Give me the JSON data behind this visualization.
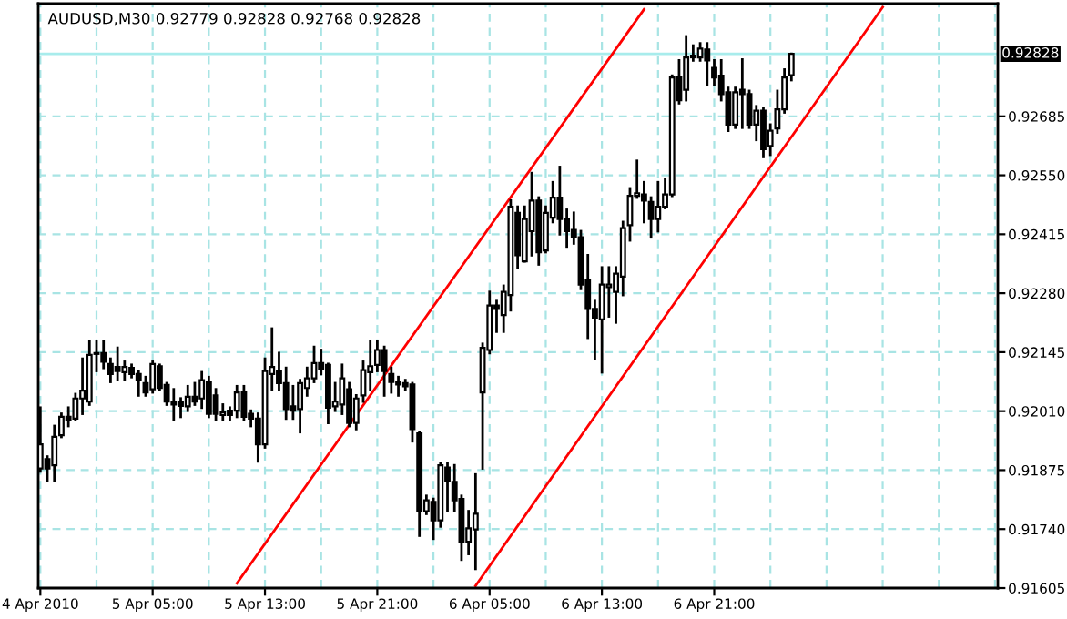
{
  "chart_data": {
    "type": "candlestick",
    "title": "AUDUSD,M30 0.92779 0.92828 0.92768 0.92828",
    "color": "#000000",
    "grid": true,
    "legend": false,
    "categories": [
      "4 Apr 2010",
      null,
      null,
      null,
      null,
      null,
      null,
      null,
      null,
      null,
      null,
      null,
      null,
      null,
      null,
      null,
      "5 Apr 05:00",
      null,
      null,
      null,
      null,
      null,
      null,
      null,
      null,
      null,
      null,
      null,
      null,
      null,
      null,
      null,
      "5 Apr 13:00",
      null,
      null,
      null,
      null,
      null,
      null,
      null,
      null,
      null,
      null,
      null,
      null,
      null,
      null,
      null,
      "5 Apr 21:00",
      null,
      null,
      null,
      null,
      null,
      null,
      null,
      null,
      null,
      null,
      null,
      null,
      null,
      null,
      null,
      "6 Apr 05:00",
      null,
      null,
      null,
      null,
      null,
      null,
      null,
      null,
      null,
      null,
      null,
      null,
      null,
      null,
      null,
      "6 Apr 13:00",
      null,
      null,
      null,
      null,
      null,
      null,
      null,
      null,
      null,
      null,
      null,
      null,
      null,
      null,
      null,
      "6 Apr 21:00",
      null,
      null,
      null,
      null,
      null,
      null,
      null,
      null,
      null,
      null,
      null,
      null,
      null,
      null,
      null,
      null,
      null,
      null,
      null,
      null,
      null,
      null,
      null,
      null,
      null,
      null,
      null,
      null,
      null,
      null,
      null,
      null,
      null,
      null,
      null,
      null,
      null,
      null,
      null,
      null
    ],
    "ohlc": [
      [
        0.91879,
        0.92018,
        0.91872,
        0.91934
      ],
      [
        0.919,
        0.91906,
        0.91851,
        0.91879
      ],
      [
        0.91886,
        0.91976,
        0.91851,
        0.91951
      ],
      [
        0.91955,
        0.92004,
        0.91951,
        0.91997
      ],
      [
        0.91997,
        0.92018,
        0.91976,
        0.9199
      ],
      [
        0.91993,
        0.92049,
        0.9199,
        0.92039
      ],
      [
        0.92039,
        0.9213,
        0.92004,
        0.92057
      ],
      [
        0.92032,
        0.92171,
        0.92025,
        0.92139
      ],
      [
        0.92143,
        0.92171,
        0.92102,
        0.92141
      ],
      [
        0.92143,
        0.92171,
        0.92109,
        0.92123
      ],
      [
        0.92118,
        0.9213,
        0.92077,
        0.92095
      ],
      [
        0.92111,
        0.92155,
        0.92081,
        0.92102
      ],
      [
        0.92099,
        0.92123,
        0.92081,
        0.92111
      ],
      [
        0.92109,
        0.92116,
        0.92088,
        0.92095
      ],
      [
        0.92095,
        0.92102,
        0.92046,
        0.92081
      ],
      [
        0.92074,
        0.92088,
        0.92046,
        0.92053
      ],
      [
        0.9206,
        0.92123,
        0.92053,
        0.92118
      ],
      [
        0.92113,
        0.92116,
        0.9206,
        0.92063
      ],
      [
        0.9207,
        0.92074,
        0.92025,
        0.92032
      ],
      [
        0.92032,
        0.9206,
        0.9199,
        0.92025
      ],
      [
        0.92032,
        0.92039,
        0.91997,
        0.92022
      ],
      [
        0.92021,
        0.92067,
        0.92011,
        0.92043
      ],
      [
        0.92043,
        0.92074,
        0.92025,
        0.92032
      ],
      [
        0.92039,
        0.92099,
        0.92018,
        0.92081
      ],
      [
        0.92077,
        0.92088,
        0.91997,
        0.92004
      ],
      [
        0.92046,
        0.9206,
        0.9199,
        0.92004
      ],
      [
        0.92001,
        0.92025,
        0.9199,
        0.92007
      ],
      [
        0.92011,
        0.92018,
        0.9199,
        0.92001
      ],
      [
        0.92011,
        0.92067,
        0.91997,
        0.92053
      ],
      [
        0.92053,
        0.92067,
        0.9199,
        0.91997
      ],
      [
        0.92004,
        0.92011,
        0.91976,
        0.91993
      ],
      [
        0.91993,
        0.92004,
        0.91895,
        0.91934
      ],
      [
        0.91934,
        0.9213,
        0.91927,
        0.92102
      ],
      [
        0.92095,
        0.92199,
        0.9206,
        0.92111
      ],
      [
        0.92102,
        0.92143,
        0.9206,
        0.92074
      ],
      [
        0.92074,
        0.92109,
        0.91993,
        0.92015
      ],
      [
        0.92021,
        0.92067,
        0.91993,
        0.92011
      ],
      [
        0.92015,
        0.92081,
        0.91962,
        0.92074
      ],
      [
        0.92063,
        0.92109,
        0.92046,
        0.92085
      ],
      [
        0.92085,
        0.92157,
        0.92077,
        0.9212
      ],
      [
        0.9212,
        0.9215,
        0.92095,
        0.92106
      ],
      [
        0.92116,
        0.92118,
        0.91983,
        0.92018
      ],
      [
        0.92021,
        0.92074,
        0.92011,
        0.92032
      ],
      [
        0.92025,
        0.92116,
        0.92004,
        0.92085
      ],
      [
        0.9206,
        0.92074,
        0.91976,
        0.91983
      ],
      [
        0.91983,
        0.92046,
        0.91969,
        0.92039
      ],
      [
        0.92046,
        0.92123,
        0.92032,
        0.92104
      ],
      [
        0.92099,
        0.92171,
        0.9206,
        0.92113
      ],
      [
        0.92116,
        0.92171,
        0.92102,
        0.9215
      ],
      [
        0.9215,
        0.92157,
        0.92046,
        0.92102
      ],
      [
        0.92095,
        0.92109,
        0.92053,
        0.92077
      ],
      [
        0.92077,
        0.92088,
        0.92046,
        0.92071
      ],
      [
        0.92074,
        0.92081,
        0.9206,
        0.92067
      ],
      [
        0.92071,
        0.92074,
        0.91941,
        0.91969
      ],
      [
        0.91959,
        0.91962,
        0.91725,
        0.91781
      ],
      [
        0.91781,
        0.91816,
        0.91775,
        0.91806
      ],
      [
        0.91802,
        0.91809,
        0.91718,
        0.9176
      ],
      [
        0.9176,
        0.9189,
        0.91746,
        0.91886
      ],
      [
        0.91881,
        0.9189,
        0.91781,
        0.91851
      ],
      [
        0.91848,
        0.91886,
        0.91781,
        0.91806
      ],
      [
        0.91809,
        0.91816,
        0.9167,
        0.91711
      ],
      [
        0.91711,
        0.91781,
        0.91683,
        0.91742
      ],
      [
        0.91739,
        0.91865,
        0.91649,
        0.91775
      ],
      [
        0.92053,
        0.92164,
        0.91879,
        0.92155
      ],
      [
        0.9215,
        0.92283,
        0.92143,
        0.92252
      ],
      [
        0.92252,
        0.92262,
        0.92192,
        0.92244
      ],
      [
        0.9223,
        0.92297,
        0.92192,
        0.92283
      ],
      [
        0.92276,
        0.92492,
        0.92241,
        0.92478
      ],
      [
        0.92464,
        0.92478,
        0.92339,
        0.92367
      ],
      [
        0.92353,
        0.92478,
        0.92353,
        0.9245
      ],
      [
        0.92422,
        0.92555,
        0.92367,
        0.92492
      ],
      [
        0.92492,
        0.92499,
        0.92346,
        0.92374
      ],
      [
        0.92378,
        0.92478,
        0.92374,
        0.92464
      ],
      [
        0.92453,
        0.92534,
        0.92443,
        0.92499
      ],
      [
        0.92499,
        0.92569,
        0.92415,
        0.9245
      ],
      [
        0.9245,
        0.92471,
        0.92387,
        0.92422
      ],
      [
        0.92425,
        0.92464,
        0.92394,
        0.92408
      ],
      [
        0.92408,
        0.92422,
        0.9229,
        0.923
      ],
      [
        0.92311,
        0.92367,
        0.92178,
        0.92244
      ],
      [
        0.92244,
        0.92262,
        0.9213,
        0.92224
      ],
      [
        0.9222,
        0.92339,
        0.92099,
        0.923
      ],
      [
        0.92294,
        0.92339,
        0.92227,
        0.923
      ],
      [
        0.92283,
        0.92339,
        0.92213,
        0.92325
      ],
      [
        0.92318,
        0.92443,
        0.92276,
        0.92429
      ],
      [
        0.92436,
        0.9252,
        0.92401,
        0.92503
      ],
      [
        0.92503,
        0.92583,
        0.92499,
        0.92509
      ],
      [
        0.92506,
        0.92534,
        0.92443,
        0.92492
      ],
      [
        0.92489,
        0.92499,
        0.92408,
        0.9245
      ],
      [
        0.9245,
        0.92534,
        0.92422,
        0.92478
      ],
      [
        0.92478,
        0.92541,
        0.92475,
        0.92506
      ],
      [
        0.92506,
        0.92778,
        0.92503,
        0.92774
      ],
      [
        0.92774,
        0.92813,
        0.92715,
        0.92722
      ],
      [
        0.92746,
        0.92868,
        0.92722,
        0.9282
      ],
      [
        0.9282,
        0.92847,
        0.92813,
        0.92824
      ],
      [
        0.9282,
        0.92852,
        0.92813,
        0.9284
      ],
      [
        0.92838,
        0.92852,
        0.92757,
        0.92813
      ],
      [
        0.92796,
        0.92813,
        0.92757,
        0.92774
      ],
      [
        0.92778,
        0.92813,
        0.92722,
        0.92736
      ],
      [
        0.9274,
        0.9275,
        0.92652,
        0.92666
      ],
      [
        0.92666,
        0.9275,
        0.92659,
        0.9274
      ],
      [
        0.92746,
        0.92815,
        0.92659,
        0.92736
      ],
      [
        0.92736,
        0.92743,
        0.92659,
        0.92666
      ],
      [
        0.92666,
        0.92708,
        0.92631,
        0.92698
      ],
      [
        0.92698,
        0.92704,
        0.92592,
        0.9261
      ],
      [
        0.92617,
        0.92666,
        0.92597,
        0.92652
      ],
      [
        0.92657,
        0.92743,
        0.92648,
        0.92701
      ],
      [
        0.92701,
        0.92792,
        0.92694,
        0.92774
      ],
      [
        0.92779,
        0.92828,
        0.92768,
        0.92828
      ],
      null,
      null,
      null,
      null,
      null,
      null,
      null,
      null,
      null,
      null,
      null,
      null,
      null,
      null,
      null,
      null,
      null,
      null,
      null,
      null,
      null,
      null,
      null,
      null,
      null,
      null,
      null,
      null,
      null
    ],
    "series": [
      {
        "type": "line",
        "color": "#ff0000",
        "values": [
          null,
          null,
          null,
          null,
          null,
          null,
          null,
          null,
          null,
          null,
          null,
          null,
          null,
          null,
          null,
          null,
          null,
          null,
          null,
          null,
          null,
          null,
          null,
          null,
          null,
          null,
          null,
          null,
          0.91616,
          null,
          null,
          null,
          null,
          null,
          null,
          null,
          null,
          null,
          null,
          null,
          null,
          null,
          null,
          null,
          null,
          null,
          null,
          null,
          null,
          null,
          null,
          null,
          null,
          null,
          null,
          null,
          null,
          null,
          null,
          null,
          null,
          null,
          null,
          null,
          null,
          null,
          null,
          null,
          null,
          null,
          null,
          null,
          null,
          null,
          null,
          null,
          null,
          null,
          null,
          null,
          null,
          null,
          null,
          null,
          null,
          null,
          0.9293,
          null,
          null,
          null,
          null,
          null,
          null,
          null,
          null,
          null,
          null,
          null,
          null,
          null,
          null,
          null,
          null,
          null,
          null,
          null,
          null,
          null,
          null,
          null,
          null,
          null,
          null,
          null,
          null,
          null,
          null,
          null,
          null,
          null,
          null,
          null,
          null,
          null,
          null,
          null,
          null,
          null,
          null,
          null,
          null,
          null,
          null,
          null,
          null,
          null,
          null
        ]
      },
      {
        "type": "line",
        "color": "#ff0000",
        "values": [
          null,
          null,
          null,
          null,
          null,
          null,
          null,
          null,
          null,
          null,
          null,
          null,
          null,
          null,
          null,
          null,
          null,
          null,
          null,
          null,
          null,
          null,
          null,
          null,
          null,
          null,
          null,
          null,
          null,
          null,
          null,
          null,
          null,
          null,
          null,
          null,
          null,
          null,
          null,
          null,
          null,
          null,
          null,
          null,
          null,
          null,
          null,
          null,
          null,
          null,
          null,
          null,
          null,
          null,
          null,
          null,
          null,
          null,
          null,
          null,
          null,
          null,
          0.9161,
          null,
          null,
          null,
          null,
          null,
          null,
          null,
          null,
          null,
          null,
          null,
          null,
          null,
          null,
          null,
          null,
          null,
          null,
          null,
          null,
          null,
          null,
          null,
          null,
          null,
          null,
          null,
          null,
          null,
          null,
          null,
          null,
          null,
          null,
          null,
          null,
          null,
          null,
          null,
          null,
          null,
          null,
          null,
          null,
          null,
          null,
          null,
          null,
          null,
          null,
          null,
          null,
          null,
          null,
          null,
          null,
          null,
          0.92935,
          null,
          null,
          null,
          null,
          null,
          null,
          null,
          null,
          null,
          null,
          null,
          null,
          null,
          null,
          null,
          null
        ]
      }
    ],
    "ref_lines": [
      {
        "axis": "y",
        "value": 0.92828,
        "label": "0.92828",
        "color": "#a8ecec"
      }
    ],
    "ylim": [
      0.91605,
      0.92943
    ],
    "yticks": [
      0.91605,
      {
        "value": 0.9174,
        "label": "0.91740"
      },
      0.91875,
      {
        "value": 0.9201,
        "label": "0.92010"
      },
      0.92145,
      {
        "value": 0.9228,
        "label": "0.92280"
      },
      0.92415,
      {
        "value": 0.9255,
        "label": "0.92550"
      },
      0.92685
    ]
  }
}
